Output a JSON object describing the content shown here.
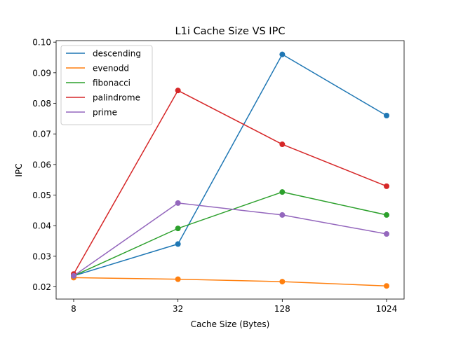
{
  "chart_data": {
    "type": "line",
    "title": "L1i Cache Size VS IPC",
    "xlabel": "Cache Size (Bytes)",
    "ylabel": "IPC",
    "categories": [
      "8",
      "32",
      "128",
      "1024"
    ],
    "ylim": [
      0.016,
      0.1005
    ],
    "yticks": [
      "0.02",
      "0.03",
      "0.04",
      "0.05",
      "0.06",
      "0.07",
      "0.08",
      "0.09",
      "0.10"
    ],
    "ytick_values": [
      0.02,
      0.03,
      0.04,
      0.05,
      0.06,
      0.07,
      0.08,
      0.09,
      0.1
    ],
    "grid": false,
    "legend_position": "top-left",
    "series": [
      {
        "name": "descending",
        "color": "#1f77b4",
        "values": [
          0.0236,
          0.034,
          0.096,
          0.076
        ]
      },
      {
        "name": "evenodd",
        "color": "#ff7f0e",
        "values": [
          0.023,
          0.0225,
          0.0217,
          0.0203
        ]
      },
      {
        "name": "fibonacci",
        "color": "#2ca02c",
        "values": [
          0.0236,
          0.0391,
          0.051,
          0.0435
        ]
      },
      {
        "name": "palindrome",
        "color": "#d62728",
        "values": [
          0.0242,
          0.0842,
          0.0666,
          0.0529
        ]
      },
      {
        "name": "prime",
        "color": "#9467bd",
        "values": [
          0.0236,
          0.0474,
          0.0435,
          0.0373
        ]
      }
    ]
  }
}
